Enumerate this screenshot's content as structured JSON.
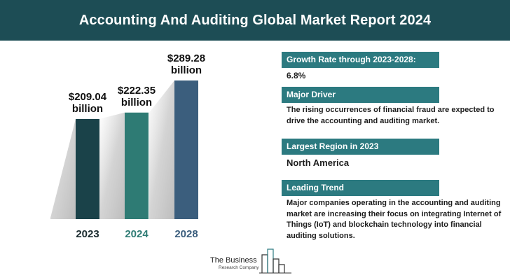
{
  "header": {
    "title": "Accounting And Auditing Global Market Report 2024"
  },
  "chart_data": {
    "type": "bar",
    "categories": [
      "2023",
      "2024",
      "2028"
    ],
    "values": [
      209.04,
      222.35,
      289.28
    ],
    "value_labels": [
      "$209.04\nbillion",
      "$222.35\nbillion",
      "$289.28\nbillion"
    ],
    "colors": [
      "#1a4249",
      "#2e7b74",
      "#3b5e7d"
    ],
    "xlabel": "",
    "ylabel": ""
  },
  "panel": {
    "growth_label": "Growth Rate through 2023-2028:",
    "growth_value": "6.8%",
    "driver_label": "Major Driver",
    "driver_text": "The rising occurrences of financial fraud are expected to drive the accounting and auditing market.",
    "region_label": "Largest Region in 2023",
    "region_value": "North America",
    "trend_label": "Leading Trend",
    "trend_text": "Major companies operating in the accounting and auditing market are increasing their focus on integrating Internet of Things (IoT) and blockchain technology into financial auditing solutions."
  },
  "logo": {
    "line1": "The Business",
    "line2": "Research Company"
  }
}
